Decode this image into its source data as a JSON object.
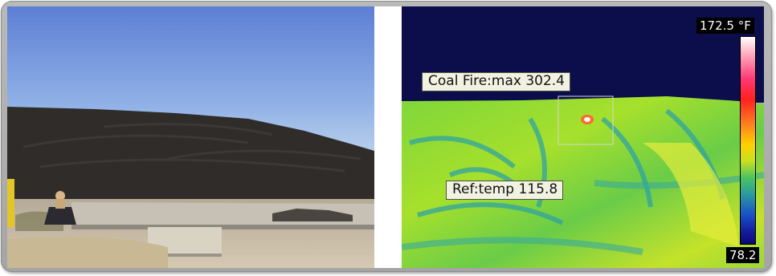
{
  "thermal": {
    "coal_fire_label": "Coal Fire:max 302.4",
    "ref_label": "Ref:temp 115.8",
    "scale_max": "172.5 °F",
    "scale_min": "78.2"
  },
  "colors": {
    "frame": "#b0b0b0",
    "sky_visible": "#6f8fd8",
    "coal_pile": "#2c2a28",
    "thermal_sky": "#0b0e4a",
    "thermal_hot_spot": "#ff6a2a"
  }
}
